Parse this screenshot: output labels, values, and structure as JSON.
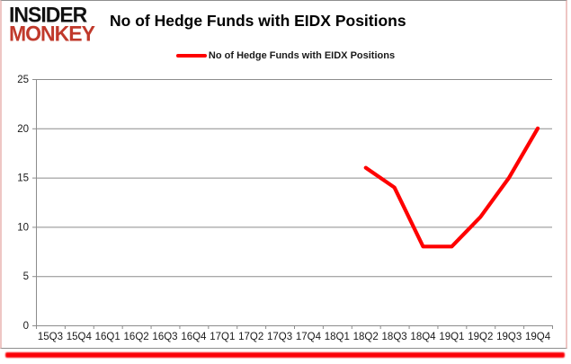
{
  "logo": {
    "line1": "INSIDER",
    "line2": "MONKEY",
    "color_line1": "#111111",
    "color_line2": "#c0392b"
  },
  "header": {
    "title": "No of Hedge Funds with EIDX Positions"
  },
  "legend": {
    "label": "No of Hedge Funds with EIDX Positions",
    "swatch_color": "#fe0000"
  },
  "chart_data": {
    "type": "line",
    "title": "No of Hedge Funds with EIDX Positions",
    "categories": [
      "15Q3",
      "15Q4",
      "16Q1",
      "16Q2",
      "16Q3",
      "16Q4",
      "17Q1",
      "17Q2",
      "17Q3",
      "17Q4",
      "18Q1",
      "18Q2",
      "18Q3",
      "18Q4",
      "19Q1",
      "19Q2",
      "19Q3",
      "19Q4"
    ],
    "series": [
      {
        "name": "No of Hedge Funds with EIDX Positions",
        "color": "#fe0000",
        "values": [
          null,
          null,
          null,
          null,
          null,
          null,
          null,
          null,
          null,
          null,
          null,
          16,
          14,
          8,
          8,
          11,
          15,
          20
        ]
      }
    ],
    "xlabel": "",
    "ylabel": "",
    "ylim": [
      0,
      25
    ],
    "yticks": [
      0,
      5,
      10,
      15,
      20,
      25
    ],
    "grid": true,
    "legend_position": "top",
    "gridline_color": "#8c8c8c",
    "axis_color": "#8c8c8c",
    "tick_label_color": "#1a1a1a"
  }
}
